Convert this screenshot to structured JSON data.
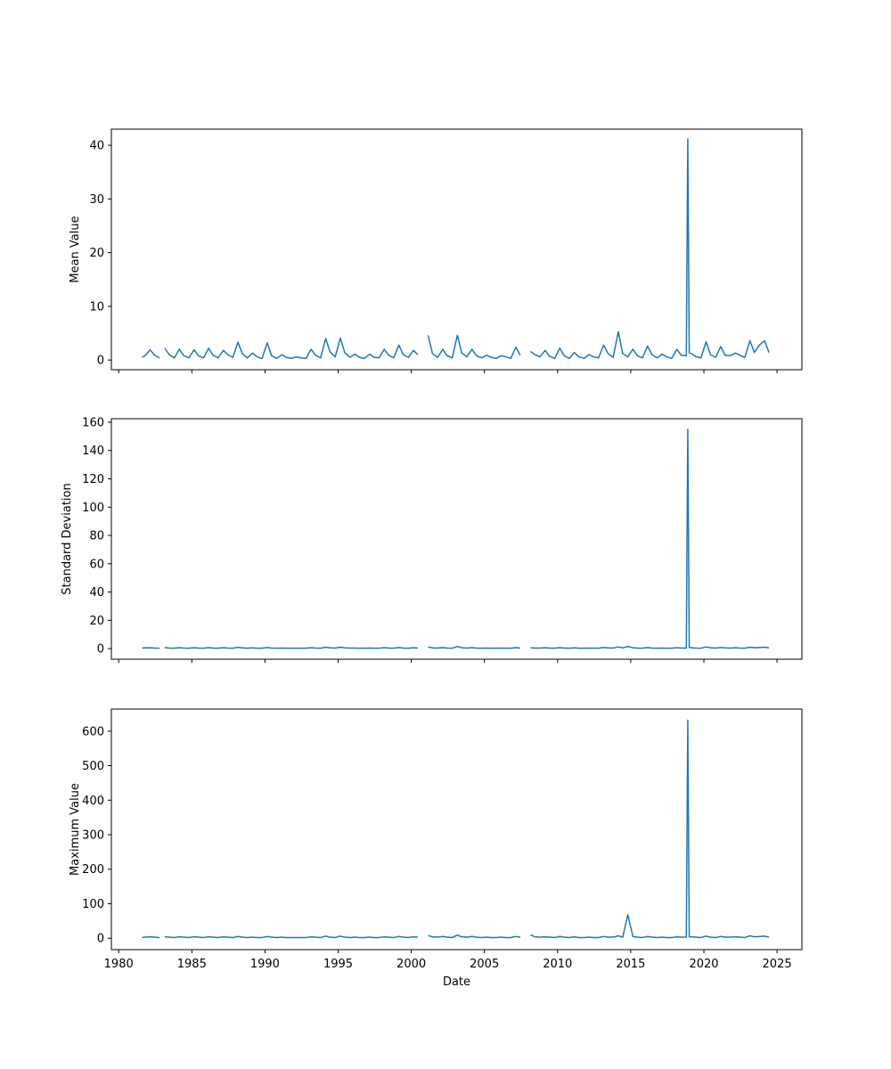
{
  "chart_data": [
    {
      "type": "line",
      "ylabel": "Mean Value",
      "color": "#1f77b4",
      "xlim": [
        1979.5,
        2026.7
      ],
      "ylim": [
        -1.8,
        43
      ],
      "xticks": [
        1980,
        1985,
        1990,
        1995,
        2000,
        2005,
        2010,
        2015,
        2020,
        2025
      ],
      "yticks": [
        0,
        10,
        20,
        30,
        40
      ],
      "x": [
        1981.6,
        1981.8,
        1982.15,
        1982.45,
        1982.8,
        1982.95,
        1983.15,
        1983.45,
        1983.8,
        1984.15,
        1984.45,
        1984.8,
        1985.15,
        1985.45,
        1985.8,
        1986.15,
        1986.45,
        1986.8,
        1987.15,
        1987.45,
        1987.8,
        1988.15,
        1988.45,
        1988.8,
        1989.15,
        1989.45,
        1989.8,
        1990.15,
        1990.45,
        1990.8,
        1991.15,
        1991.45,
        1991.8,
        1992.15,
        1992.45,
        1992.8,
        1993.15,
        1993.45,
        1993.8,
        1994.15,
        1994.45,
        1994.8,
        1995.15,
        1995.45,
        1995.8,
        1996.15,
        1996.45,
        1996.8,
        1997.15,
        1997.45,
        1997.8,
        1998.15,
        1998.45,
        1998.8,
        1999.15,
        1999.45,
        1999.8,
        2000.15,
        2000.45,
        2000.8,
        2001.15,
        2001.45,
        2001.8,
        2002.15,
        2002.45,
        2002.8,
        2003.15,
        2003.45,
        2003.8,
        2004.15,
        2004.45,
        2004.8,
        2005.15,
        2005.45,
        2005.8,
        2006.15,
        2006.45,
        2006.8,
        2007.15,
        2007.45,
        2007.8,
        2008.15,
        2008.45,
        2008.8,
        2009.15,
        2009.45,
        2009.8,
        2010.15,
        2010.45,
        2010.8,
        2011.15,
        2011.45,
        2011.8,
        2012.15,
        2012.45,
        2012.8,
        2013.15,
        2013.45,
        2013.8,
        2014.15,
        2014.45,
        2014.8,
        2015.15,
        2015.45,
        2015.8,
        2016.15,
        2016.45,
        2016.8,
        2017.15,
        2017.45,
        2017.8,
        2018.15,
        2018.45,
        2018.8,
        2018.9,
        2019.0,
        2019.15,
        2019.45,
        2019.8,
        2020.15,
        2020.45,
        2020.8,
        2021.15,
        2021.45,
        2021.8,
        2022.15,
        2022.45,
        2022.8,
        2023.15,
        2023.45,
        2023.8,
        2024.15,
        2024.45
      ],
      "values": [
        0.5,
        0.8,
        1.9,
        0.9,
        0.4,
        null,
        2.2,
        1.0,
        0.4,
        2.0,
        0.8,
        0.4,
        1.9,
        0.8,
        0.4,
        2.2,
        0.9,
        0.4,
        1.8,
        1.0,
        0.5,
        3.3,
        1.2,
        0.4,
        1.3,
        0.6,
        0.3,
        3.2,
        0.8,
        0.3,
        1.0,
        0.5,
        0.3,
        0.6,
        0.4,
        0.3,
        2.0,
        0.9,
        0.4,
        4.0,
        1.5,
        0.6,
        4.1,
        1.4,
        0.5,
        1.1,
        0.5,
        0.3,
        1.1,
        0.5,
        0.4,
        2.0,
        0.9,
        0.4,
        2.8,
        1.0,
        0.5,
        1.8,
        1.0,
        null,
        4.6,
        1.2,
        0.5,
        2.0,
        0.8,
        0.4,
        4.6,
        1.3,
        0.6,
        2.0,
        0.8,
        0.4,
        0.9,
        0.5,
        0.3,
        0.8,
        0.6,
        0.3,
        2.4,
        0.9,
        null,
        1.6,
        1.0,
        0.6,
        1.8,
        0.7,
        0.3,
        2.2,
        0.8,
        0.3,
        1.4,
        0.6,
        0.3,
        1.0,
        0.6,
        0.4,
        2.8,
        1.2,
        0.5,
        5.3,
        1.2,
        0.6,
        2.0,
        0.8,
        0.4,
        2.6,
        1.0,
        0.4,
        1.1,
        0.6,
        0.3,
        2.0,
        0.9,
        0.8,
        41.2,
        1.3,
        1.2,
        0.6,
        0.4,
        3.4,
        1.0,
        0.5,
        2.5,
        0.9,
        0.8,
        1.3,
        0.9,
        0.5,
        3.6,
        1.4,
        2.8,
        3.6,
        1.4
      ]
    },
    {
      "type": "line",
      "ylabel": "Standard Deviation",
      "color": "#1f77b4",
      "xlim": [
        1979.5,
        2026.7
      ],
      "ylim": [
        -7.5,
        162.5
      ],
      "xticks": [
        1980,
        1985,
        1990,
        1995,
        2000,
        2005,
        2010,
        2015,
        2020,
        2025
      ],
      "yticks": [
        0,
        20,
        40,
        60,
        80,
        100,
        120,
        140,
        160
      ],
      "x": [
        1981.6,
        1981.8,
        1982.15,
        1982.45,
        1982.8,
        1982.95,
        1983.15,
        1983.45,
        1983.8,
        1984.15,
        1984.45,
        1984.8,
        1985.15,
        1985.45,
        1985.8,
        1986.15,
        1986.45,
        1986.8,
        1987.15,
        1987.45,
        1987.8,
        1988.15,
        1988.45,
        1988.8,
        1989.15,
        1989.45,
        1989.8,
        1990.15,
        1990.45,
        1990.8,
        1991.15,
        1991.45,
        1991.8,
        1992.15,
        1992.45,
        1992.8,
        1993.15,
        1993.45,
        1993.8,
        1994.15,
        1994.45,
        1994.8,
        1995.15,
        1995.45,
        1995.8,
        1996.15,
        1996.45,
        1996.8,
        1997.15,
        1997.45,
        1997.8,
        1998.15,
        1998.45,
        1998.8,
        1999.15,
        1999.45,
        1999.8,
        2000.15,
        2000.45,
        2000.8,
        2001.15,
        2001.45,
        2001.8,
        2002.15,
        2002.45,
        2002.8,
        2003.15,
        2003.45,
        2003.8,
        2004.15,
        2004.45,
        2004.8,
        2005.15,
        2005.45,
        2005.8,
        2006.15,
        2006.45,
        2006.8,
        2007.15,
        2007.45,
        2007.8,
        2008.15,
        2008.45,
        2008.8,
        2009.15,
        2009.45,
        2009.8,
        2010.15,
        2010.45,
        2010.8,
        2011.15,
        2011.45,
        2011.8,
        2012.15,
        2012.45,
        2012.8,
        2013.15,
        2013.45,
        2013.8,
        2014.15,
        2014.45,
        2014.8,
        2015.15,
        2015.45,
        2015.8,
        2016.15,
        2016.45,
        2016.8,
        2017.15,
        2017.45,
        2017.8,
        2018.15,
        2018.45,
        2018.8,
        2018.9,
        2019.0,
        2019.15,
        2019.45,
        2019.8,
        2020.15,
        2020.45,
        2020.8,
        2021.15,
        2021.45,
        2021.8,
        2022.15,
        2022.45,
        2022.8,
        2023.15,
        2023.45,
        2023.8,
        2024.15,
        2024.45
      ],
      "values": [
        0.4,
        0.5,
        0.6,
        0.4,
        0.3,
        null,
        0.7,
        0.4,
        0.3,
        0.6,
        0.4,
        0.3,
        0.6,
        0.4,
        0.3,
        0.7,
        0.4,
        0.3,
        0.6,
        0.4,
        0.3,
        0.9,
        0.5,
        0.3,
        0.5,
        0.3,
        0.3,
        0.8,
        0.4,
        0.3,
        0.4,
        0.3,
        0.3,
        0.3,
        0.3,
        0.3,
        0.6,
        0.4,
        0.3,
        1.0,
        0.5,
        0.4,
        1.0,
        0.5,
        0.4,
        0.4,
        0.3,
        0.3,
        0.4,
        0.3,
        0.3,
        0.7,
        0.4,
        0.3,
        0.8,
        0.4,
        0.3,
        0.6,
        0.4,
        null,
        1.2,
        0.5,
        0.4,
        0.7,
        0.4,
        0.3,
        1.5,
        0.6,
        0.4,
        0.7,
        0.4,
        0.3,
        0.4,
        0.3,
        0.3,
        0.4,
        0.3,
        0.3,
        0.7,
        0.4,
        null,
        0.6,
        0.4,
        0.4,
        0.6,
        0.4,
        0.3,
        0.7,
        0.4,
        0.3,
        0.5,
        0.3,
        0.3,
        0.4,
        0.3,
        0.3,
        0.8,
        0.5,
        0.4,
        1.2,
        0.5,
        1.5,
        0.6,
        0.4,
        0.3,
        0.8,
        0.4,
        0.3,
        0.4,
        0.3,
        0.3,
        0.6,
        0.4,
        0.4,
        155,
        0.8,
        0.6,
        0.4,
        0.3,
        1.2,
        0.6,
        0.4,
        0.8,
        0.5,
        0.4,
        0.6,
        0.4,
        0.3,
        1.0,
        0.6,
        0.8,
        1.0,
        0.5
      ]
    },
    {
      "type": "line",
      "ylabel": "Maximum Value",
      "xlabel": "Date",
      "color": "#1f77b4",
      "xlim": [
        1979.5,
        2026.7
      ],
      "ylim": [
        -33,
        664
      ],
      "xticks": [
        1980,
        1985,
        1990,
        1995,
        2000,
        2005,
        2010,
        2015,
        2020,
        2025
      ],
      "yticks": [
        0,
        100,
        200,
        300,
        400,
        500,
        600
      ],
      "x": [
        1981.6,
        1981.8,
        1982.15,
        1982.45,
        1982.8,
        1982.95,
        1983.15,
        1983.45,
        1983.8,
        1984.15,
        1984.45,
        1984.8,
        1985.15,
        1985.45,
        1985.8,
        1986.15,
        1986.45,
        1986.8,
        1987.15,
        1987.45,
        1987.8,
        1988.15,
        1988.45,
        1988.8,
        1989.15,
        1989.45,
        1989.8,
        1990.15,
        1990.45,
        1990.8,
        1991.15,
        1991.45,
        1991.8,
        1992.15,
        1992.45,
        1992.8,
        1993.15,
        1993.45,
        1993.8,
        1994.15,
        1994.45,
        1994.8,
        1995.15,
        1995.45,
        1995.8,
        1996.15,
        1996.45,
        1996.8,
        1997.15,
        1997.45,
        1997.8,
        1998.15,
        1998.45,
        1998.8,
        1999.15,
        1999.45,
        1999.8,
        2000.15,
        2000.45,
        2000.8,
        2001.15,
        2001.45,
        2001.8,
        2002.15,
        2002.45,
        2002.8,
        2003.15,
        2003.45,
        2003.8,
        2004.15,
        2004.45,
        2004.8,
        2005.15,
        2005.45,
        2005.8,
        2006.15,
        2006.45,
        2006.8,
        2007.15,
        2007.45,
        2007.8,
        2008.15,
        2008.45,
        2008.8,
        2009.15,
        2009.45,
        2009.8,
        2010.15,
        2010.45,
        2010.8,
        2011.15,
        2011.45,
        2011.8,
        2012.15,
        2012.45,
        2012.8,
        2013.15,
        2013.45,
        2013.8,
        2014.15,
        2014.45,
        2014.8,
        2015.15,
        2015.45,
        2015.8,
        2016.15,
        2016.45,
        2016.8,
        2017.15,
        2017.45,
        2017.8,
        2018.15,
        2018.45,
        2018.8,
        2018.9,
        2019.0,
        2019.15,
        2019.45,
        2019.8,
        2020.15,
        2020.45,
        2020.8,
        2021.15,
        2021.45,
        2021.8,
        2022.15,
        2022.45,
        2022.8,
        2023.15,
        2023.45,
        2023.8,
        2024.15,
        2024.45
      ],
      "values": [
        2,
        3,
        4,
        3,
        2,
        null,
        4,
        3,
        2,
        4,
        3,
        2,
        4,
        3,
        2,
        4,
        3,
        2,
        4,
        3,
        2,
        5,
        3,
        2,
        3,
        2,
        2,
        5,
        3,
        2,
        3,
        2,
        2,
        2,
        2,
        2,
        4,
        3,
        2,
        6,
        3,
        2,
        6,
        3,
        2,
        3,
        2,
        2,
        3,
        2,
        2,
        4,
        3,
        2,
        5,
        3,
        2,
        4,
        3,
        null,
        8,
        4,
        3,
        5,
        3,
        2,
        9,
        4,
        3,
        5,
        3,
        2,
        3,
        2,
        2,
        3,
        2,
        2,
        5,
        3,
        null,
        10,
        4,
        3,
        4,
        3,
        2,
        5,
        3,
        2,
        4,
        2,
        2,
        3,
        2,
        2,
        5,
        3,
        3,
        7,
        3,
        68,
        5,
        3,
        2,
        5,
        3,
        2,
        3,
        2,
        2,
        4,
        3,
        3,
        632,
        4,
        4,
        3,
        2,
        6,
        3,
        2,
        5,
        3,
        3,
        4,
        3,
        2,
        7,
        4,
        5,
        6,
        3
      ]
    }
  ]
}
